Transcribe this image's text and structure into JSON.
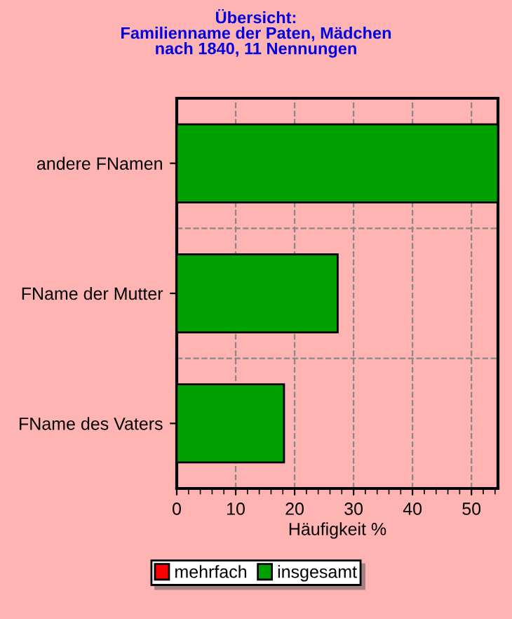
{
  "chart_data": {
    "type": "bar",
    "orientation": "horizontal",
    "title": "Übersicht:\nFamilienname der Paten, Mädchen\nnach 1840, 11 Nennungen",
    "categories": [
      "andere FNamen",
      "FName der Mutter",
      "FName des Vaters"
    ],
    "series": [
      {
        "name": "mehrfach",
        "color": "#ff0000",
        "values": [
          null,
          null,
          null
        ]
      },
      {
        "name": "insgesamt",
        "color": "#00a000",
        "values": [
          54.5,
          27.3,
          18.2
        ]
      }
    ],
    "xlabel": "Häufigkeit %",
    "xlim": [
      0,
      54.5
    ],
    "xticks": [
      0,
      10,
      20,
      30,
      40,
      50
    ],
    "grid": true,
    "legend": "bottom"
  }
}
